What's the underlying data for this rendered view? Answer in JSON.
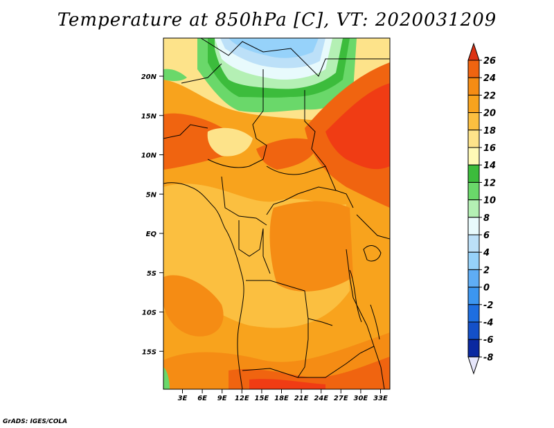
{
  "title": "Temperature at 850hPa [C], VT: 2020031209",
  "credit": "GrADS: IGES/COLA",
  "map": {
    "lat_labels": [
      "20N",
      "15N",
      "10N",
      "5N",
      "EQ",
      "5S",
      "10S",
      "15S"
    ],
    "lon_labels": [
      "3E",
      "6E",
      "9E",
      "12E",
      "15E",
      "18E",
      "21E",
      "24E",
      "27E",
      "30E",
      "33E"
    ]
  },
  "colorbar": {
    "labels": [
      "26",
      "24",
      "22",
      "20",
      "18",
      "16",
      "14",
      "12",
      "10",
      "8",
      "6",
      "4",
      "2",
      "0",
      "-2",
      "-4",
      "-6",
      "-8"
    ],
    "colors": [
      "#f03c14",
      "#f06410",
      "#f58c14",
      "#f8a31d",
      "#fbbf40",
      "#fde38a",
      "#fef9b6",
      "#3cbc3c",
      "#6ad86a",
      "#b4f0b4",
      "#e8fafc",
      "#bce0f8",
      "#96d2fa",
      "#5fadf5",
      "#3c96f0",
      "#1e6ee0",
      "#1450c8",
      "#0a28a0",
      "#04046e"
    ],
    "over_color": "#dc3214",
    "under_color": "#e6e6fa"
  }
}
